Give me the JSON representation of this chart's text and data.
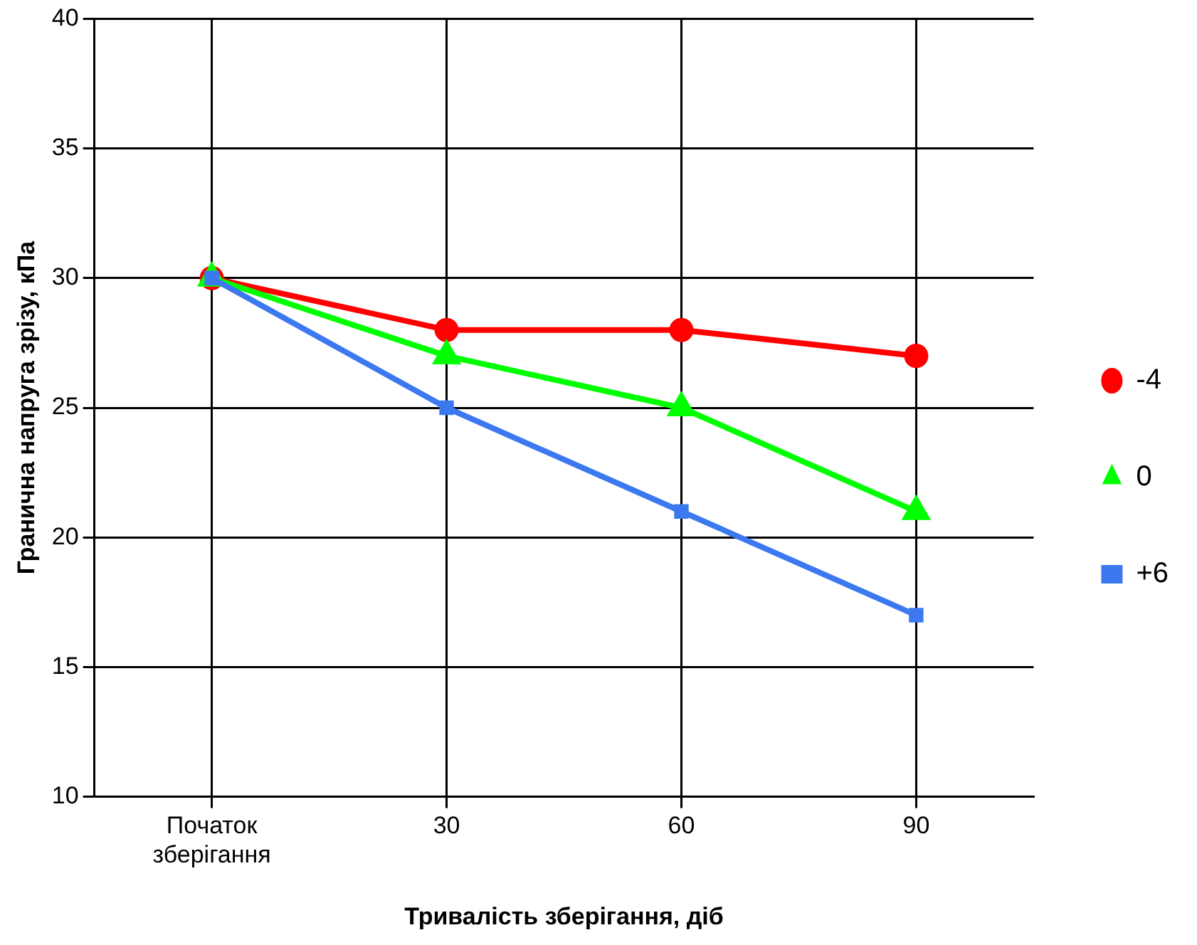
{
  "chart_data": {
    "type": "line",
    "xlabel": "Тривалість зберігання, діб",
    "ylabel": "Гранична напруга зрізу, кПа",
    "categories": [
      "Початок зберігання",
      "30",
      "60",
      "90"
    ],
    "series": [
      {
        "name": "-4",
        "color": "#ff0000",
        "marker": "circle",
        "values": [
          30,
          28,
          28,
          27
        ]
      },
      {
        "name": "0",
        "color": "#00ff00",
        "marker": "triangle",
        "values": [
          30,
          27,
          25,
          21
        ]
      },
      {
        "name": "+6",
        "color": "#3c78f0",
        "marker": "square",
        "values": [
          30,
          25,
          21,
          17
        ]
      }
    ],
    "ylim": [
      10,
      40
    ],
    "yticks": [
      10,
      15,
      20,
      25,
      30,
      35,
      40
    ],
    "grid": true,
    "legend": "right",
    "line_style": "solid"
  }
}
